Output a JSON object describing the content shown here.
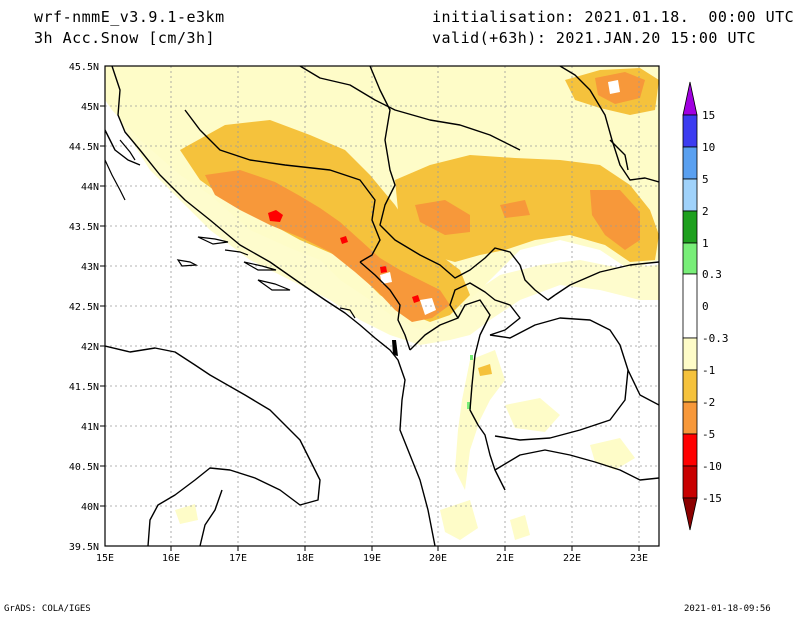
{
  "header": {
    "model": "wrf-nmmE_v3.9.1-e3km",
    "field": "3h Acc.Snow [cm/3h]",
    "init": "initialisation: 2021.01.18.  00:00 UTC",
    "valid": "valid(+63h): 2021.JAN.20 15:00 UTC"
  },
  "footer": {
    "credit": "GrADS: COLA/IGES",
    "timestamp": "2021-01-18-09:56"
  },
  "map": {
    "lat_labels": [
      "45.5N",
      "45N",
      "44.5N",
      "44N",
      "43.5N",
      "43N",
      "42.5N",
      "42N",
      "41.5N",
      "41N",
      "40.5N",
      "40N",
      "39.5N"
    ],
    "lon_labels": [
      "15E",
      "16E",
      "17E",
      "18E",
      "19E",
      "20E",
      "21E",
      "22E",
      "23E"
    ]
  },
  "legend": {
    "labels": [
      "15",
      "10",
      "5",
      "2",
      "1",
      "0.3",
      "0",
      "-0.3",
      "-1",
      "-2",
      "-5",
      "-10",
      "-15"
    ],
    "colors": [
      "#a000e0",
      "#3c3cf0",
      "#5aa0f0",
      "#a0d2fa",
      "#1ea01e",
      "#78ee78",
      "#ffffff",
      "#fefcc8",
      "#f5c23c",
      "#f7983a",
      "#ff0000",
      "#c80000",
      "#8c0000"
    ]
  }
}
